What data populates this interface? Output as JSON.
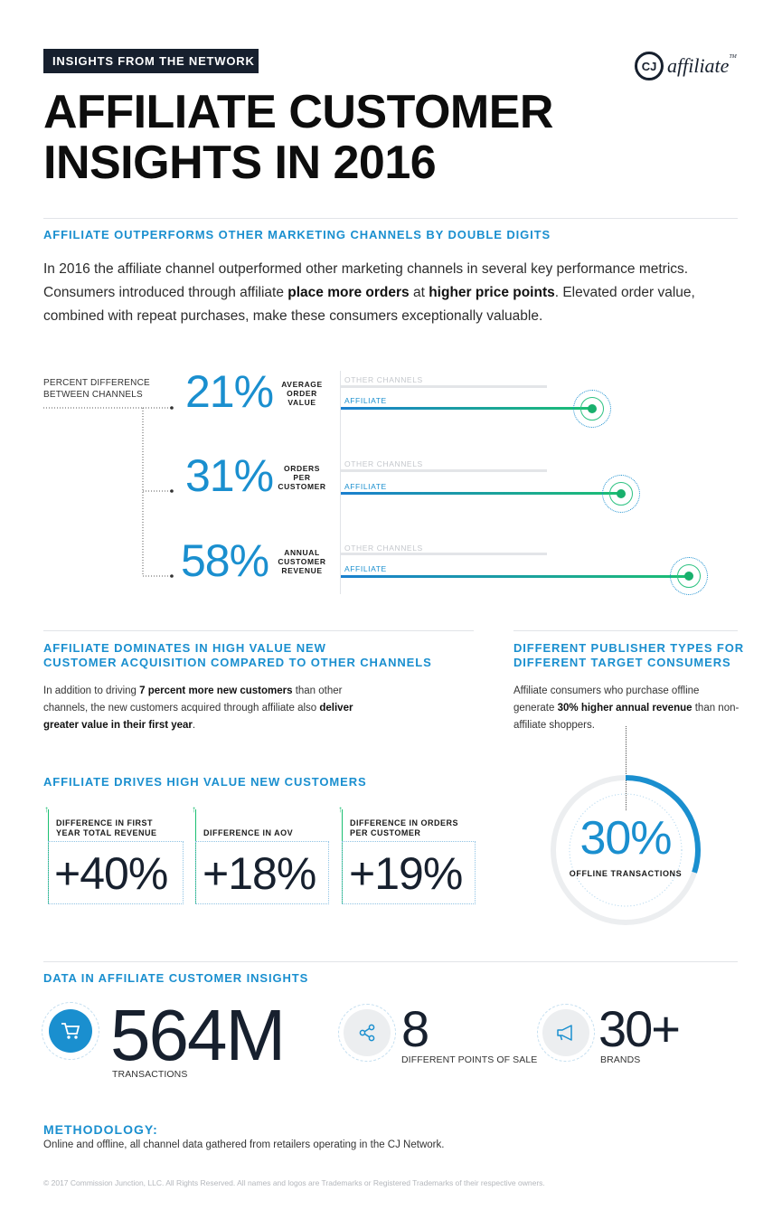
{
  "header": {
    "tag": "INSIGHTS FROM THE NETWORK",
    "title_line1": "AFFILIATE CUSTOMER",
    "title_line2": "INSIGHTS IN 2016",
    "logo_mark": "CJ",
    "logo_text": "affiliate",
    "logo_tm": "TM"
  },
  "section1": {
    "heading": "AFFILIATE OUTPERFORMS OTHER MARKETING CHANNELS BY DOUBLE DIGITS",
    "intro_a": "In 2016 the affiliate channel outperformed other marketing channels in several key performance metrics. Consumers introduced through affiliate ",
    "intro_b": "place more orders",
    "intro_c": " at ",
    "intro_d": "higher price points",
    "intro_e": ". Elevated order value, combined with repeat purchases, make these consumers exceptionally valuable.",
    "pd_label_1": "PERCENT DIFFERENCE",
    "pd_label_2": "BETWEEN CHANNELS",
    "other_label": "OTHER CHANNELS",
    "affiliate_label": "AFFILIATE",
    "metrics": [
      {
        "pct": "21%",
        "l1": "AVERAGE",
        "l2": "ORDER",
        "l3": "VALUE",
        "value": 21
      },
      {
        "pct": "31%",
        "l1": "ORDERS",
        "l2": "PER",
        "l3": "CUSTOMER",
        "value": 31
      },
      {
        "pct": "58%",
        "l1": "ANNUAL",
        "l2": "CUSTOMER",
        "l3": "REVENUE",
        "value": 58
      }
    ]
  },
  "section2": {
    "heading_1": "AFFILIATE DOMINATES IN HIGH VALUE NEW",
    "heading_2": "CUSTOMER ACQUISITION COMPARED TO OTHER CHANNELS",
    "body_a": "In addition to driving ",
    "body_b": "7 percent more new customers",
    "body_c": " than other channels, the new customers acquired through affiliate also ",
    "body_d": "deliver greater value in their first year",
    "body_e": "."
  },
  "section3": {
    "heading": "AFFILIATE DRIVES HIGH VALUE NEW CUSTOMERS",
    "cards": [
      {
        "l1": "DIFFERENCE IN FIRST",
        "l2": "YEAR TOTAL REVENUE",
        "value": "+40%"
      },
      {
        "l1": "DIFFERENCE IN AOV",
        "l2": "",
        "value": "+18%"
      },
      {
        "l1": "DIFFERENCE IN ORDERS",
        "l2": "PER CUSTOMER",
        "value": "+19%"
      }
    ]
  },
  "section4": {
    "heading_1": "DIFFERENT PUBLISHER TYPES FOR",
    "heading_2": "DIFFERENT TARGET CONSUMERS",
    "body_a": "Affiliate consumers who purchase offline generate ",
    "body_b": "30% higher annual revenue",
    "body_c": " than non-affiliate shoppers.",
    "donut_value": "30%",
    "donut_label": "OFFLINE TRANSACTIONS",
    "donut_fraction": 0.3
  },
  "section5": {
    "heading": "DATA IN AFFILIATE CUSTOMER INSIGHTS",
    "stats": [
      {
        "value": "564M",
        "caption": "TRANSACTIONS",
        "icon": "shopping-cart-icon"
      },
      {
        "value": "8",
        "caption": "DIFFERENT POINTS OF SALE",
        "icon": "share-icon"
      },
      {
        "value": "30+",
        "caption": "BRANDS",
        "icon": "megaphone-icon"
      }
    ]
  },
  "methodology": {
    "heading": "METHODOLOGY:",
    "body": "Online and offline, all channel data gathered from retailers operating in the CJ Network."
  },
  "footer": "© 2017 Commission Junction, LLC. All Rights Reserved. All names and logos are Trademarks or Registered Trademarks of their respective owners.",
  "colors": {
    "blue": "#1a8fcf",
    "green": "#1bbf72",
    "navy": "#17202e",
    "grey": "#e3e5e8"
  }
}
